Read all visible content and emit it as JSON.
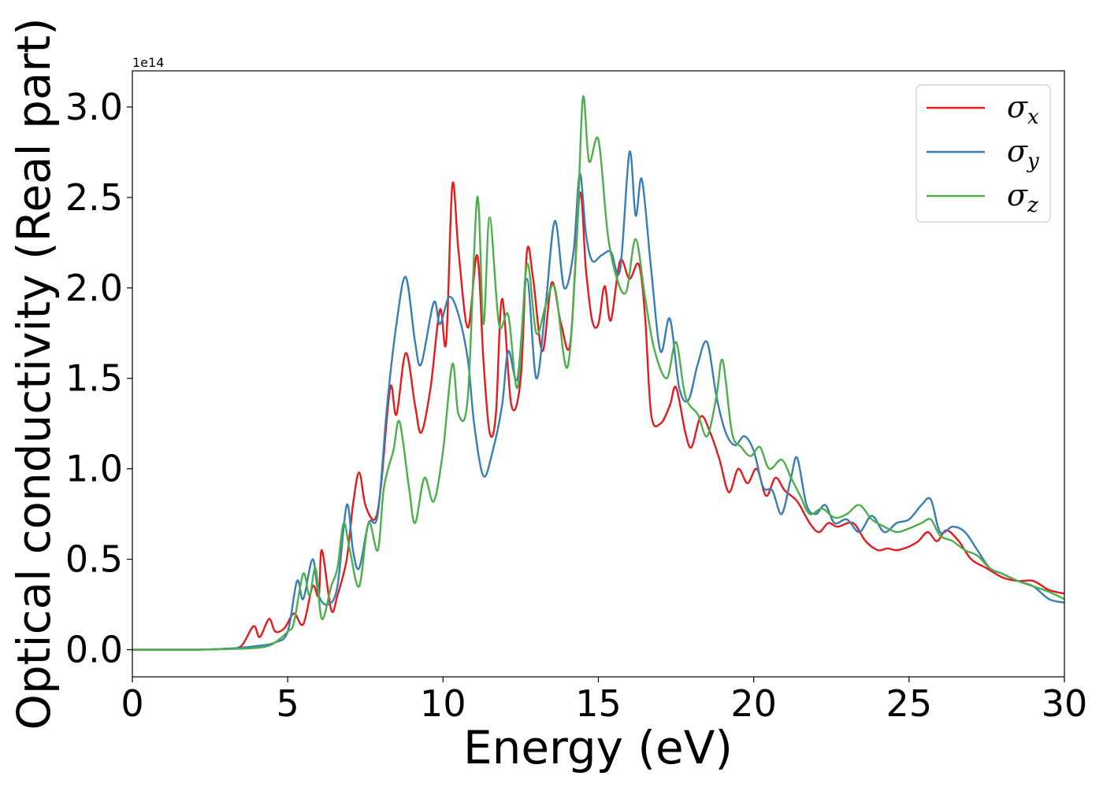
{
  "chart_data": {
    "type": "line",
    "title": "",
    "xlabel": "Energy (eV)",
    "ylabel": "Optical conductivity (Real part)",
    "y_offset_label": "1e14",
    "xlim": [
      0,
      30
    ],
    "ylim": [
      -0.15,
      3.2
    ],
    "x_ticks": [
      0,
      5,
      10,
      15,
      20,
      25,
      30
    ],
    "x_tick_labels": [
      "0",
      "5",
      "10",
      "15",
      "20",
      "25",
      "30"
    ],
    "y_ticks": [
      0.0,
      0.5,
      1.0,
      1.5,
      2.0,
      2.5,
      3.0
    ],
    "y_tick_labels": [
      "0.0",
      "0.5",
      "1.0",
      "1.5",
      "2.0",
      "2.5",
      "3.0"
    ],
    "grid": false,
    "legend_position": "top-right",
    "series": [
      {
        "name": "σx",
        "symbol": "σ",
        "subscript": "x",
        "color": "#e41a1c",
        "points": [
          [
            0,
            0
          ],
          [
            2,
            0
          ],
          [
            3,
            0.005
          ],
          [
            3.5,
            0.02
          ],
          [
            3.9,
            0.13
          ],
          [
            4.1,
            0.07
          ],
          [
            4.4,
            0.17
          ],
          [
            4.6,
            0.1
          ],
          [
            4.9,
            0.12
          ],
          [
            5.2,
            0.2
          ],
          [
            5.5,
            0.14
          ],
          [
            5.8,
            0.35
          ],
          [
            6,
            0.3
          ],
          [
            6.1,
            0.55
          ],
          [
            6.4,
            0.22
          ],
          [
            6.6,
            0.3
          ],
          [
            6.9,
            0.5
          ],
          [
            7.1,
            0.8
          ],
          [
            7.3,
            0.98
          ],
          [
            7.5,
            0.8
          ],
          [
            7.8,
            0.72
          ],
          [
            8,
            0.9
          ],
          [
            8.3,
            1.45
          ],
          [
            8.5,
            1.3
          ],
          [
            8.8,
            1.64
          ],
          [
            9.1,
            1.35
          ],
          [
            9.3,
            1.2
          ],
          [
            9.6,
            1.45
          ],
          [
            9.9,
            1.88
          ],
          [
            10.1,
            1.7
          ],
          [
            10.3,
            2.57
          ],
          [
            10.5,
            2.2
          ],
          [
            10.8,
            1.78
          ],
          [
            11.1,
            2.18
          ],
          [
            11.3,
            1.6
          ],
          [
            11.5,
            1.2
          ],
          [
            11.7,
            1.3
          ],
          [
            11.9,
            1.94
          ],
          [
            12.2,
            1.35
          ],
          [
            12.5,
            1.5
          ],
          [
            12.7,
            2.2
          ],
          [
            12.9,
            2.05
          ],
          [
            13.2,
            1.65
          ],
          [
            13.5,
            2.03
          ],
          [
            13.8,
            1.8
          ],
          [
            14.1,
            1.7
          ],
          [
            14.4,
            2.52
          ],
          [
            14.6,
            2.1
          ],
          [
            14.8,
            1.82
          ],
          [
            15,
            1.8
          ],
          [
            15.2,
            2.01
          ],
          [
            15.4,
            1.82
          ],
          [
            15.7,
            2.15
          ],
          [
            16,
            2.05
          ],
          [
            16.3,
            2.13
          ],
          [
            16.5,
            1.85
          ],
          [
            16.7,
            1.3
          ],
          [
            17,
            1.25
          ],
          [
            17.3,
            1.35
          ],
          [
            17.5,
            1.45
          ],
          [
            17.8,
            1.2
          ],
          [
            18,
            1.12
          ],
          [
            18.3,
            1.29
          ],
          [
            18.6,
            1.2
          ],
          [
            18.9,
            1.05
          ],
          [
            19.2,
            0.87
          ],
          [
            19.5,
            1.0
          ],
          [
            19.8,
            0.92
          ],
          [
            20.1,
            1.0
          ],
          [
            20.4,
            0.85
          ],
          [
            20.7,
            0.95
          ],
          [
            21,
            0.88
          ],
          [
            21.4,
            0.82
          ],
          [
            21.8,
            0.7
          ],
          [
            22.1,
            0.65
          ],
          [
            22.4,
            0.7
          ],
          [
            22.7,
            0.68
          ],
          [
            23.2,
            0.7
          ],
          [
            23.6,
            0.6
          ],
          [
            24,
            0.55
          ],
          [
            24.3,
            0.56
          ],
          [
            24.6,
            0.55
          ],
          [
            25,
            0.57
          ],
          [
            25.3,
            0.6
          ],
          [
            25.6,
            0.65
          ],
          [
            25.9,
            0.6
          ],
          [
            26.2,
            0.66
          ],
          [
            26.6,
            0.6
          ],
          [
            27,
            0.5
          ],
          [
            27.5,
            0.45
          ],
          [
            28,
            0.4
          ],
          [
            28.5,
            0.38
          ],
          [
            29,
            0.38
          ],
          [
            29.5,
            0.33
          ],
          [
            30,
            0.31
          ]
        ]
      },
      {
        "name": "σy",
        "symbol": "σ",
        "subscript": "y",
        "color": "#377eb8",
        "points": [
          [
            0,
            0
          ],
          [
            2,
            0
          ],
          [
            3,
            0.005
          ],
          [
            4,
            0.02
          ],
          [
            4.6,
            0.04
          ],
          [
            5,
            0.1
          ],
          [
            5.3,
            0.38
          ],
          [
            5.5,
            0.28
          ],
          [
            5.8,
            0.5
          ],
          [
            6,
            0.3
          ],
          [
            6.3,
            0.25
          ],
          [
            6.6,
            0.35
          ],
          [
            6.9,
            0.8
          ],
          [
            7.1,
            0.55
          ],
          [
            7.3,
            0.45
          ],
          [
            7.6,
            0.7
          ],
          [
            7.9,
            0.75
          ],
          [
            8.2,
            1.35
          ],
          [
            8.5,
            1.8
          ],
          [
            8.8,
            2.06
          ],
          [
            9.1,
            1.7
          ],
          [
            9.3,
            1.58
          ],
          [
            9.7,
            1.92
          ],
          [
            9.9,
            1.8
          ],
          [
            10.2,
            1.95
          ],
          [
            10.5,
            1.85
          ],
          [
            10.8,
            1.6
          ],
          [
            11,
            1.25
          ],
          [
            11.3,
            0.96
          ],
          [
            11.6,
            1.1
          ],
          [
            11.9,
            1.35
          ],
          [
            12.1,
            1.65
          ],
          [
            12.4,
            1.5
          ],
          [
            12.7,
            2.05
          ],
          [
            13,
            1.5
          ],
          [
            13.3,
            1.9
          ],
          [
            13.6,
            2.37
          ],
          [
            13.9,
            2.0
          ],
          [
            14.2,
            2.2
          ],
          [
            14.4,
            2.63
          ],
          [
            14.6,
            2.3
          ],
          [
            14.8,
            2.15
          ],
          [
            15.1,
            2.18
          ],
          [
            15.4,
            2.2
          ],
          [
            15.7,
            2.1
          ],
          [
            16,
            2.75
          ],
          [
            16.2,
            2.4
          ],
          [
            16.4,
            2.6
          ],
          [
            16.7,
            2.1
          ],
          [
            17,
            1.65
          ],
          [
            17.3,
            1.83
          ],
          [
            17.6,
            1.45
          ],
          [
            17.9,
            1.38
          ],
          [
            18.2,
            1.58
          ],
          [
            18.5,
            1.7
          ],
          [
            18.8,
            1.4
          ],
          [
            19.1,
            1.2
          ],
          [
            19.4,
            1.13
          ],
          [
            19.7,
            1.18
          ],
          [
            20,
            1.1
          ],
          [
            20.3,
            0.9
          ],
          [
            20.6,
            0.88
          ],
          [
            20.9,
            0.75
          ],
          [
            21.2,
            0.95
          ],
          [
            21.4,
            1.06
          ],
          [
            21.7,
            0.8
          ],
          [
            22,
            0.75
          ],
          [
            22.3,
            0.8
          ],
          [
            22.6,
            0.7
          ],
          [
            23,
            0.72
          ],
          [
            23.4,
            0.65
          ],
          [
            23.8,
            0.74
          ],
          [
            24.2,
            0.65
          ],
          [
            24.6,
            0.7
          ],
          [
            25,
            0.72
          ],
          [
            25.4,
            0.8
          ],
          [
            25.7,
            0.83
          ],
          [
            26,
            0.65
          ],
          [
            26.4,
            0.68
          ],
          [
            26.8,
            0.65
          ],
          [
            27.2,
            0.55
          ],
          [
            27.6,
            0.45
          ],
          [
            28,
            0.42
          ],
          [
            28.5,
            0.38
          ],
          [
            29,
            0.35
          ],
          [
            29.5,
            0.28
          ],
          [
            30,
            0.26
          ]
        ]
      },
      {
        "name": "σz",
        "symbol": "σ",
        "subscript": "z",
        "color": "#4daf4a",
        "points": [
          [
            0,
            0
          ],
          [
            2,
            0
          ],
          [
            3,
            0.003
          ],
          [
            4,
            0.01
          ],
          [
            4.5,
            0.03
          ],
          [
            5,
            0.1
          ],
          [
            5.2,
            0.15
          ],
          [
            5.5,
            0.42
          ],
          [
            5.7,
            0.3
          ],
          [
            5.9,
            0.45
          ],
          [
            6.1,
            0.17
          ],
          [
            6.4,
            0.35
          ],
          [
            6.6,
            0.45
          ],
          [
            6.8,
            0.7
          ],
          [
            7,
            0.55
          ],
          [
            7.3,
            0.35
          ],
          [
            7.6,
            0.7
          ],
          [
            7.9,
            0.55
          ],
          [
            8.1,
            0.9
          ],
          [
            8.4,
            1.1
          ],
          [
            8.6,
            1.26
          ],
          [
            8.9,
            0.9
          ],
          [
            9.1,
            0.7
          ],
          [
            9.4,
            0.95
          ],
          [
            9.7,
            0.82
          ],
          [
            10,
            1.1
          ],
          [
            10.3,
            1.58
          ],
          [
            10.5,
            1.3
          ],
          [
            10.8,
            1.4
          ],
          [
            11.1,
            2.5
          ],
          [
            11.3,
            1.8
          ],
          [
            11.5,
            2.39
          ],
          [
            11.8,
            1.8
          ],
          [
            12.1,
            1.85
          ],
          [
            12.4,
            1.45
          ],
          [
            12.7,
            2.13
          ],
          [
            13,
            1.75
          ],
          [
            13.3,
            1.9
          ],
          [
            13.6,
            2.0
          ],
          [
            14,
            1.56
          ],
          [
            14.3,
            2.25
          ],
          [
            14.5,
            3.05
          ],
          [
            14.7,
            2.7
          ],
          [
            15,
            2.82
          ],
          [
            15.3,
            2.3
          ],
          [
            15.6,
            2.05
          ],
          [
            15.9,
            1.98
          ],
          [
            16.2,
            2.27
          ],
          [
            16.5,
            1.95
          ],
          [
            16.8,
            1.66
          ],
          [
            17.2,
            1.5
          ],
          [
            17.5,
            1.7
          ],
          [
            17.8,
            1.4
          ],
          [
            18.2,
            1.3
          ],
          [
            18.5,
            1.18
          ],
          [
            18.8,
            1.4
          ],
          [
            19,
            1.6
          ],
          [
            19.3,
            1.2
          ],
          [
            19.6,
            1.12
          ],
          [
            19.9,
            1.07
          ],
          [
            20.2,
            1.12
          ],
          [
            20.5,
            1.0
          ],
          [
            20.9,
            1.05
          ],
          [
            21.2,
            0.95
          ],
          [
            21.5,
            0.85
          ],
          [
            21.8,
            0.75
          ],
          [
            22.2,
            0.78
          ],
          [
            22.6,
            0.73
          ],
          [
            23,
            0.75
          ],
          [
            23.4,
            0.8
          ],
          [
            23.8,
            0.72
          ],
          [
            24.2,
            0.68
          ],
          [
            24.6,
            0.65
          ],
          [
            25,
            0.67
          ],
          [
            25.4,
            0.7
          ],
          [
            25.7,
            0.72
          ],
          [
            26,
            0.63
          ],
          [
            26.4,
            0.6
          ],
          [
            26.8,
            0.55
          ],
          [
            27.2,
            0.52
          ],
          [
            27.6,
            0.45
          ],
          [
            28,
            0.42
          ],
          [
            28.5,
            0.38
          ],
          [
            29,
            0.35
          ],
          [
            29.5,
            0.32
          ],
          [
            30,
            0.28
          ]
        ]
      }
    ]
  }
}
